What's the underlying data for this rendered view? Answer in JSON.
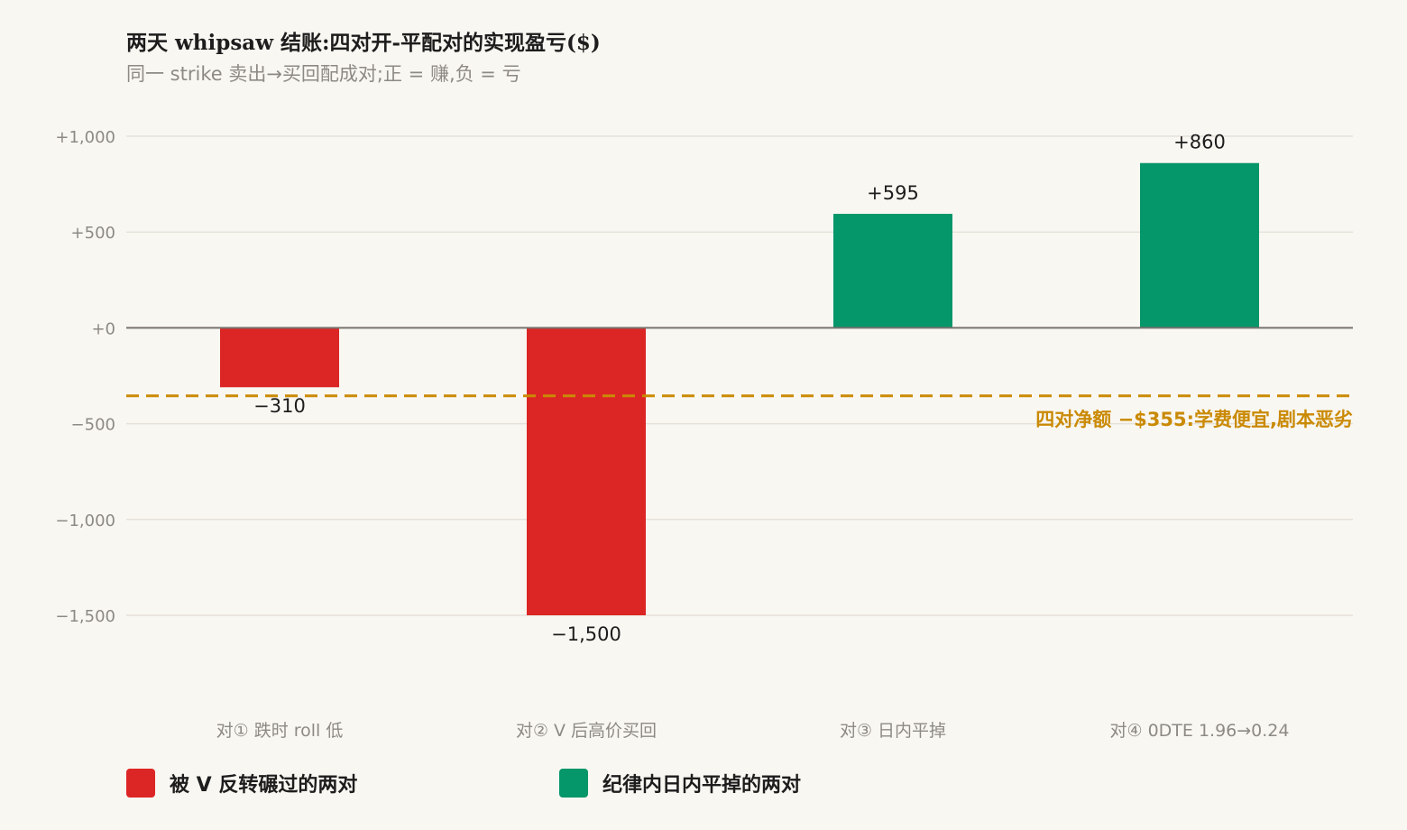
{
  "title": "两天 whipsaw 结账:四对开-平配对的实现盈亏($)",
  "subtitle": "同一 strike 卖出→买回配成对;正 = 赚,负 = 亏",
  "colors": {
    "background": "#f9f7f2",
    "loss": "#dc2626",
    "gain": "#059669",
    "net_line": "#ca8a04",
    "zero_line": "#77736e",
    "grid": "#e6e2da",
    "tick_text": "#8d8a84"
  },
  "chart_data": {
    "type": "bar",
    "title": "两天 whipsaw 结账:四对开-平配对的实现盈亏($)",
    "subtitle": "同一 strike 卖出→买回配成对;正 = 赚,负 = 亏",
    "xlabel": "",
    "ylabel": "",
    "categories": [
      "对① 跌时 roll 低",
      "对② V 后高价买回",
      "对③ 日内平掉",
      "对④ 0DTE 1.96→0.24"
    ],
    "values": [
      -310,
      -1500,
      595,
      860
    ],
    "value_labels": [
      "−310",
      "−1,500",
      "+595",
      "+860"
    ],
    "bar_groups": [
      "loss",
      "loss",
      "gain",
      "gain"
    ],
    "ylim": [
      -1750,
      1050
    ],
    "yticks": [
      1000,
      500,
      0,
      -500,
      -1000,
      -1500
    ],
    "ytick_labels": [
      "+1,000",
      "+500",
      "+0",
      "−500",
      "−1,000",
      "−1,500"
    ],
    "grid": true,
    "reference_line": {
      "value": -355,
      "style": "dashed",
      "label": "四对净额 −$355:学费便宜,剧本恶劣"
    },
    "legend": {
      "position": "bottom-left",
      "entries": [
        {
          "key": "loss",
          "label": "被 V 反转碾过的两对"
        },
        {
          "key": "gain",
          "label": "纪律内日内平掉的两对"
        }
      ]
    }
  }
}
